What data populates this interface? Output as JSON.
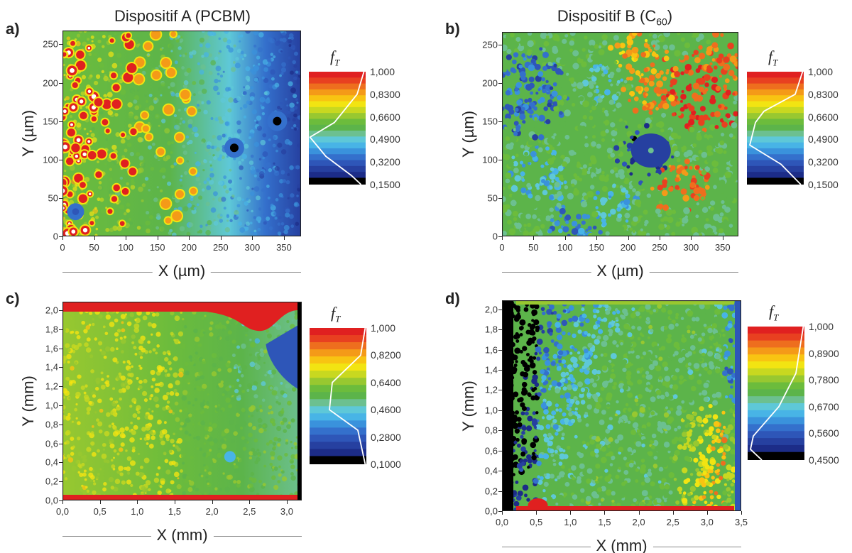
{
  "chart_data": [
    {
      "type": "heatmap",
      "panel_label": "a)",
      "title": "Dispositif A (PCBM)",
      "xlabel": "X (µm)",
      "ylabel": "Y (µm)",
      "xlim": [
        0,
        377
      ],
      "ylim": [
        0,
        268
      ],
      "xticks": [
        "0",
        "50",
        "100",
        "150",
        "200",
        "250",
        "300",
        "350"
      ],
      "yticks": [
        "0",
        "50",
        "100",
        "150",
        "200",
        "250"
      ],
      "colorbar": {
        "label": "f",
        "label_sub": "T",
        "ticks": [
          "1,000",
          "0,8300",
          "0,6600",
          "0,4900",
          "0,3200",
          "0,1500"
        ],
        "range": [
          0.15,
          1.0
        ]
      }
    },
    {
      "type": "heatmap",
      "panel_label": "b)",
      "title": "Dispositif B (C",
      "title_sub": "60",
      "title_end": ")",
      "xlabel": "X (µm)",
      "ylabel": "Y (µm)",
      "xlim": [
        0,
        375
      ],
      "ylim": [
        0,
        267
      ],
      "xticks": [
        "0",
        "50",
        "100",
        "150",
        "200",
        "250",
        "300",
        "350"
      ],
      "yticks": [
        "0",
        "50",
        "100",
        "150",
        "200",
        "250"
      ],
      "colorbar": {
        "label": "f",
        "label_sub": "T",
        "ticks": [
          "1,000",
          "0,8300",
          "0,6600",
          "0,4900",
          "0,3200",
          "0,1500"
        ],
        "range": [
          0.15,
          1.0
        ]
      }
    },
    {
      "type": "heatmap",
      "panel_label": "c)",
      "title": "",
      "xlabel": "X (mm)",
      "ylabel": "Y (mm)",
      "xlim": [
        0,
        3.2
      ],
      "ylim": [
        0,
        2.09
      ],
      "xticks": [
        "0,0",
        "0,5",
        "1,0",
        "1,5",
        "2,0",
        "2,5",
        "3,0"
      ],
      "yticks": [
        "0,0",
        "0,2",
        "0,4",
        "0,6",
        "0,8",
        "1,0",
        "1,2",
        "1,4",
        "1,6",
        "1,8",
        "2,0"
      ],
      "colorbar": {
        "label": "f",
        "label_sub": "T",
        "ticks": [
          "1,000",
          "0,8200",
          "0,6400",
          "0,4600",
          "0,2800",
          "0,1000"
        ],
        "range": [
          0.1,
          1.0
        ]
      }
    },
    {
      "type": "heatmap",
      "panel_label": "d)",
      "title": "",
      "xlabel": "X (mm)",
      "ylabel": "Y (mm)",
      "xlim": [
        0,
        3.5
      ],
      "ylim": [
        0,
        2.09
      ],
      "xticks": [
        "0,0",
        "0,5",
        "1,0",
        "1,5",
        "2,0",
        "2,5",
        "3,0",
        "3,5"
      ],
      "yticks": [
        "0,0",
        "0,2",
        "0,4",
        "0,6",
        "0,8",
        "1,0",
        "1,2",
        "1,4",
        "1,6",
        "1,8",
        "2,0"
      ],
      "colorbar": {
        "label": "f",
        "label_sub": "T",
        "ticks": [
          "1,000",
          "0,8900",
          "0,7800",
          "0,6700",
          "0,5600",
          "0,4500"
        ],
        "range": [
          0.45,
          1.0
        ]
      }
    }
  ],
  "colormap": [
    "#000000",
    "#1c2c88",
    "#2640a0",
    "#2e56b8",
    "#3470cc",
    "#3a92dc",
    "#48b4e6",
    "#5ec8d8",
    "#6cc090",
    "#5cb44a",
    "#6cbc3c",
    "#98c830",
    "#c8d820",
    "#f2e412",
    "#f8c412",
    "#f49a18",
    "#ee6e1e",
    "#e84020",
    "#e02020"
  ]
}
